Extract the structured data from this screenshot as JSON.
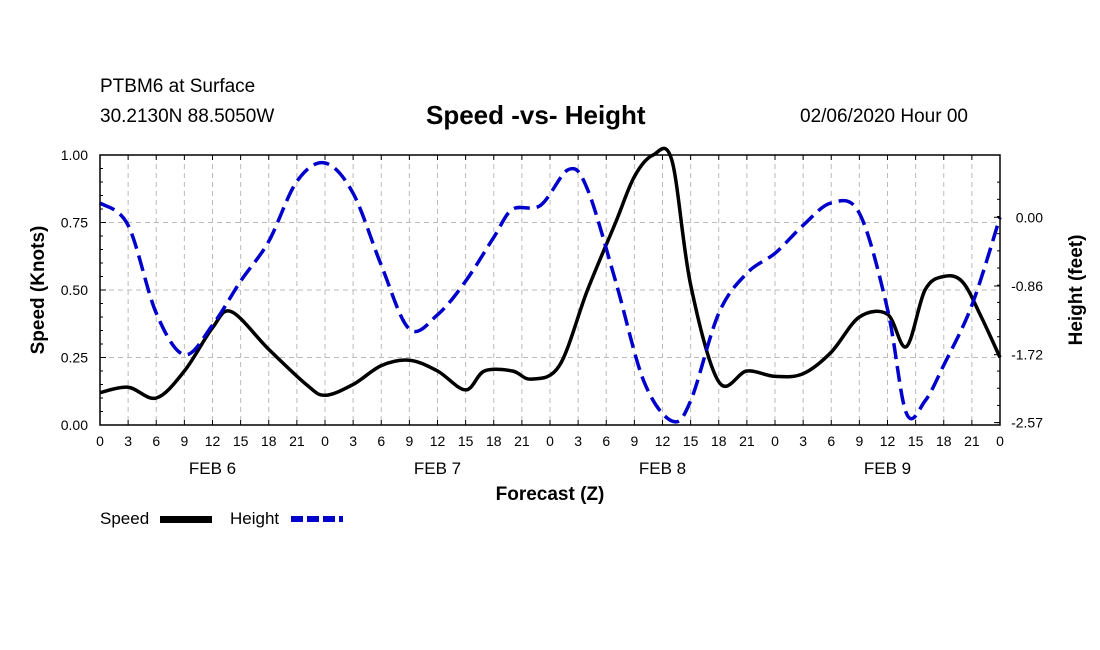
{
  "header": {
    "station": "PTBM6 at Surface",
    "coords": "30.2130N 88.5050W",
    "title": "Speed -vs- Height",
    "datetime": "02/06/2020 Hour 00"
  },
  "legend": {
    "speed_label": "Speed",
    "height_label": "Height"
  },
  "colors": {
    "speed": "#000000",
    "height": "#0000cc",
    "grid": "#bbbbbb"
  },
  "chart_data": {
    "type": "line",
    "title": "Speed -vs- Height",
    "xlabel": "Forecast (Z)",
    "ylabel": "Speed (Knots)",
    "y2label": "Height (feet)",
    "xlim": [
      0,
      96
    ],
    "ylim": [
      0,
      1
    ],
    "y2lim": [
      -2.6,
      0.78
    ],
    "grid": true,
    "legend_position": "bottom-left",
    "x_tick_labels": [
      "0",
      "3",
      "6",
      "9",
      "12",
      "15",
      "18",
      "21",
      "0",
      "3",
      "6",
      "9",
      "12",
      "15",
      "18",
      "21",
      "0",
      "3",
      "6",
      "9",
      "12",
      "15",
      "18",
      "21",
      "0",
      "3",
      "6",
      "9",
      "12",
      "15",
      "18",
      "21",
      "0"
    ],
    "date_labels": [
      {
        "label": "FEB 6",
        "x": 12
      },
      {
        "label": "FEB 7",
        "x": 36
      },
      {
        "label": "FEB 8",
        "x": 60
      },
      {
        "label": "FEB 9",
        "x": 84
      }
    ],
    "y_ticks": [
      {
        "value": 0,
        "label": "0.00"
      },
      {
        "value": 0.25,
        "label": "0.25"
      },
      {
        "value": 0.5,
        "label": "0.50"
      },
      {
        "value": 0.75,
        "label": "0.75"
      },
      {
        "value": 1,
        "label": "1.00"
      }
    ],
    "y2_ticks": [
      {
        "value": 0,
        "label": "0.00"
      },
      {
        "value": -0.86,
        "label": "-0.86"
      },
      {
        "value": -1.72,
        "label": "-1.72"
      },
      {
        "value": -2.57,
        "label": "-2.57"
      }
    ],
    "series": [
      {
        "name": "Speed",
        "axis": "left",
        "style": "solid",
        "x": [
          0,
          3,
          6,
          9,
          12,
          14,
          18,
          22,
          24,
          27,
          30,
          33,
          36,
          39,
          41,
          44,
          46,
          49,
          52,
          55,
          57,
          59,
          61,
          63,
          66,
          69,
          72,
          75,
          78,
          81,
          84,
          86,
          88,
          90,
          92,
          94,
          96
        ],
        "y": [
          0.12,
          0.14,
          0.1,
          0.2,
          0.36,
          0.42,
          0.28,
          0.15,
          0.11,
          0.15,
          0.22,
          0.24,
          0.2,
          0.13,
          0.2,
          0.2,
          0.17,
          0.22,
          0.5,
          0.75,
          0.92,
          1.0,
          0.98,
          0.52,
          0.16,
          0.2,
          0.18,
          0.19,
          0.27,
          0.4,
          0.41,
          0.29,
          0.5,
          0.55,
          0.53,
          0.4,
          0.25
        ]
      },
      {
        "name": "Height",
        "axis": "right",
        "style": "dashed",
        "x": [
          0,
          3,
          6,
          9,
          12,
          15,
          18,
          21,
          24,
          27,
          30,
          33,
          36,
          39,
          42,
          44,
          47,
          50,
          52,
          55,
          58,
          61,
          63,
          66,
          69,
          72,
          75,
          78,
          81,
          84,
          86,
          88,
          90,
          93,
          96
        ],
        "y": [
          0.18,
          -0.1,
          -1.2,
          -1.72,
          -1.35,
          -0.8,
          -0.3,
          0.45,
          0.68,
          0.3,
          -0.6,
          -1.4,
          -1.22,
          -0.8,
          -0.25,
          0.1,
          0.15,
          0.6,
          0.35,
          -0.8,
          -2.05,
          -2.55,
          -2.3,
          -1.2,
          -0.7,
          -0.45,
          -0.1,
          0.18,
          0.05,
          -1.15,
          -2.45,
          -2.3,
          -1.85,
          -1.1,
          0.0
        ]
      }
    ]
  }
}
